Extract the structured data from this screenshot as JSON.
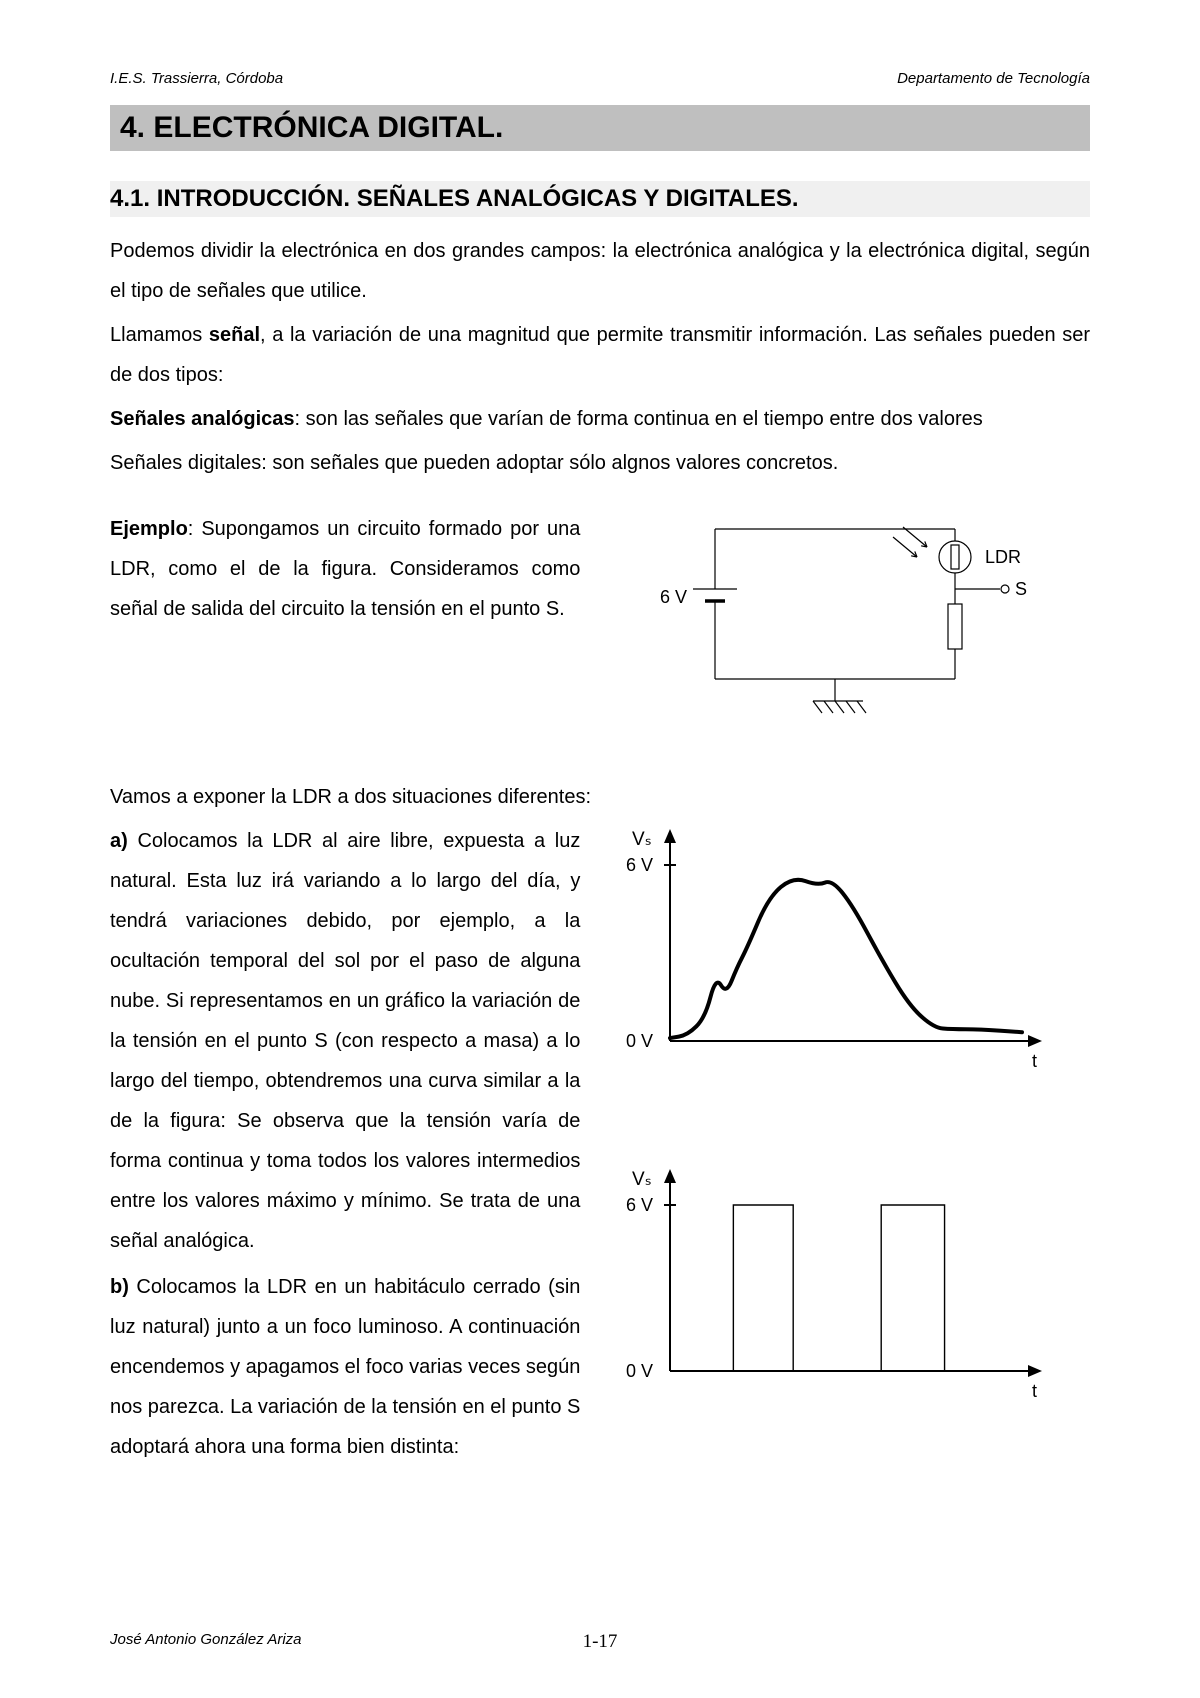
{
  "header": {
    "left": "I.E.S. Trassierra, Córdoba",
    "right": "Departamento de Tecnología"
  },
  "title": "4. ELECTRÓNICA DIGITAL.",
  "subtitle_prefix": "4.1",
  "subtitle_rest": ". INTRODUCCIÓN. SEÑALES ANALÓGICAS Y DIGITALES.",
  "intro_p1": "Podemos dividir la electrónica en dos grandes campos: la electrónica analógica y la electrónica digital, según el tipo de señales que utilice.",
  "intro_p2_a": "Llamamos ",
  "intro_p2_bold": "señal",
  "intro_p2_b": ", a la variación de una magnitud que permite transmitir información. Las señales pueden ser de dos tipos:",
  "intro_p3_bold": "Señales analógicas",
  "intro_p3_rest": ": son las señales que varían de forma continua en el tiempo entre dos valores",
  "intro_p4": "Señales digitales: son señales que pueden adoptar sólo algnos valores concretos.",
  "example_bold": "Ejemplo",
  "example_text": ": Supongamos un circuito formado por una LDR, como el de la figura. Consideramos como señal de salida del circuito la tensión en el punto S.",
  "section2_intro": "Vamos a exponer la LDR a dos situaciones diferentes:",
  "item_a_bold": "a)",
  "item_a_text": " Colocamos la LDR al aire libre, expuesta a luz natural. Esta luz irá variando a lo largo del día, y tendrá variaciones debido, por ejemplo, a la ocultación temporal del sol por el paso de alguna nube. Si representamos en un gráfico la variación de la tensión en el punto S (con respecto a masa) a lo largo del tiempo, obtendremos una curva similar a la de la figura: Se observa que la tensión varía de forma continua y toma todos los valores intermedios entre los valores máximo y mínimo. Se trata de una señal analógica.",
  "item_b_bold": "b)",
  "item_b_text": " Colocamos la LDR en un habitáculo cerrado (sin luz natural) junto a un foco luminoso. A continuación encendemos y apagamos el foco varias veces según nos parezca. La variación de la tensión en el punto S adoptará ahora una forma bien distinta:",
  "footer": {
    "left": "José Antonio González Ariza",
    "center": "1-17"
  },
  "circuit": {
    "label_6v": "6 V",
    "label_ldr": "LDR",
    "label_s": "S",
    "stroke": "#000000",
    "stroke_width": 1.2
  },
  "analog_chart": {
    "type": "line",
    "y_label": "Vₛ",
    "y_top_tick": "6 V",
    "y_bot_tick": "0 V",
    "x_label": "t",
    "axis_color": "#000000",
    "curve_color": "#000000",
    "curve_width": 4,
    "x_range": [
      0,
      100
    ],
    "y_range": [
      0,
      6
    ],
    "points": [
      [
        0,
        0.1
      ],
      [
        5,
        0.2
      ],
      [
        10,
        0.8
      ],
      [
        13,
        2.2
      ],
      [
        16,
        1.6
      ],
      [
        19,
        2.5
      ],
      [
        22,
        3.2
      ],
      [
        28,
        4.9
      ],
      [
        35,
        5.6
      ],
      [
        42,
        5.3
      ],
      [
        46,
        5.5
      ],
      [
        52,
        4.6
      ],
      [
        60,
        2.8
      ],
      [
        68,
        1.2
      ],
      [
        75,
        0.45
      ],
      [
        80,
        0.4
      ],
      [
        88,
        0.4
      ],
      [
        100,
        0.3
      ]
    ]
  },
  "digital_chart": {
    "type": "step",
    "y_label": "Vₛ",
    "y_top_tick": "6 V",
    "y_bot_tick": "0 V",
    "x_label": "t",
    "axis_color": "#000000",
    "line_color": "#000000",
    "line_width": 1.4,
    "x_range": [
      0,
      100
    ],
    "y_range": [
      0,
      6
    ],
    "high": 6,
    "low": 0,
    "transitions": [
      [
        0,
        0
      ],
      [
        18,
        0
      ],
      [
        18,
        6
      ],
      [
        35,
        6
      ],
      [
        35,
        0
      ],
      [
        60,
        0
      ],
      [
        60,
        6
      ],
      [
        78,
        6
      ],
      [
        78,
        0
      ],
      [
        100,
        0
      ]
    ]
  }
}
